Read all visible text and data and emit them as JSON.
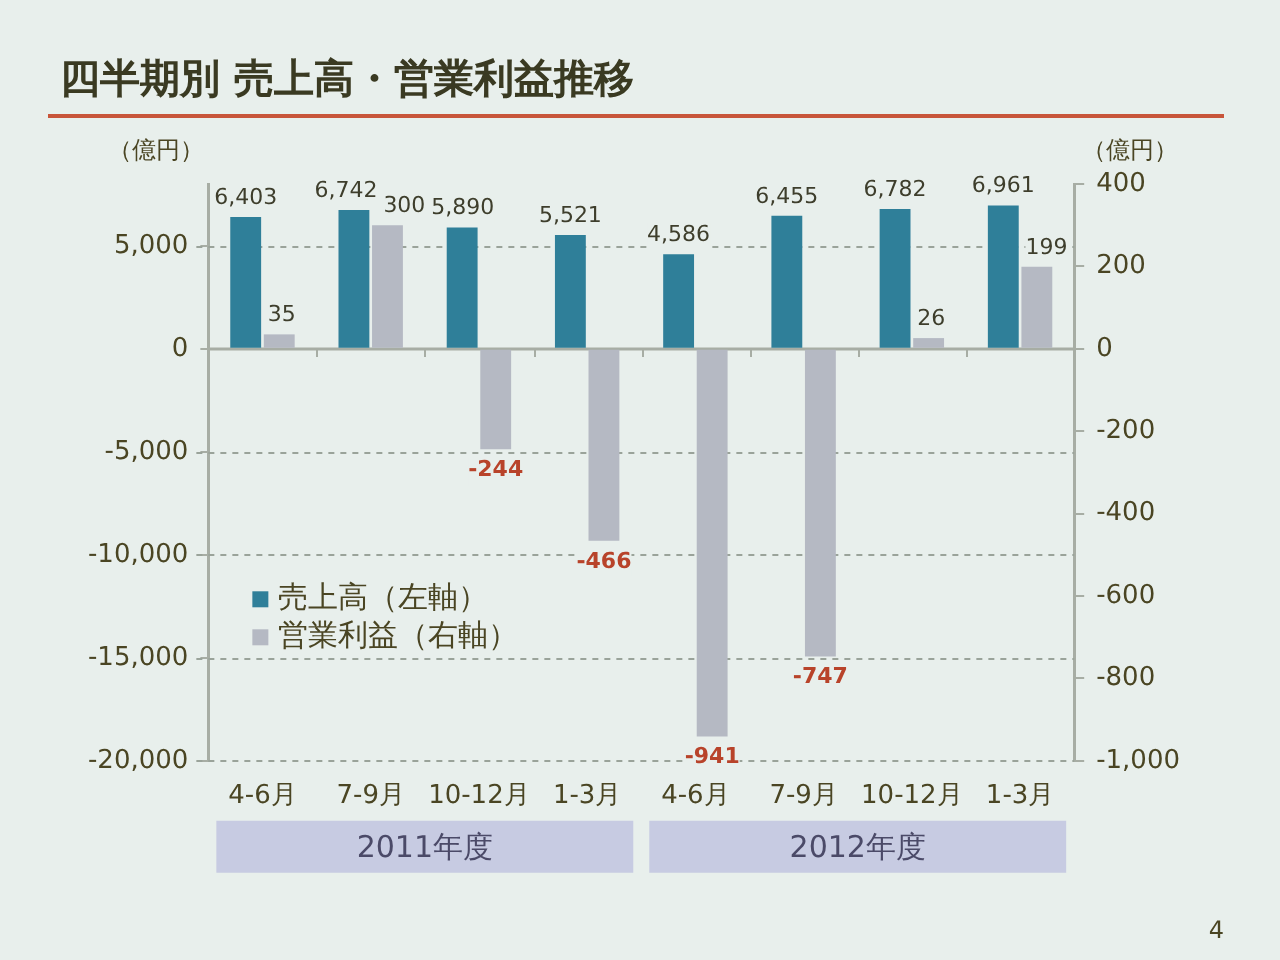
{
  "chart_data": {
    "type": "bar",
    "title": "四半期別 売上高・営業利益推移",
    "ylabel": "（億円）",
    "y2label": "（億円）",
    "categories": [
      "4-6月",
      "7-9月",
      "10-12月",
      "1-3月",
      "4-6月",
      "7-9月",
      "10-12月",
      "1-3月"
    ],
    "series": [
      {
        "name": "売上高（左軸）",
        "color": "#2f7f99",
        "values": [
          6403,
          6742,
          5890,
          5521,
          4586,
          6455,
          6782,
          6961
        ],
        "value_labels": [
          "6,403",
          "6,742",
          "5,890",
          "5,521",
          "4,586",
          "6,455",
          "6,782",
          "6,961"
        ]
      },
      {
        "name": "営業利益（右軸）",
        "color": "#b5b9c3",
        "axis": "y2",
        "values": [
          35,
          300,
          -244,
          -466,
          -941,
          -747,
          26,
          199
        ],
        "value_labels": [
          "35",
          "300",
          "-244",
          "-466",
          "-941",
          "-747",
          "26",
          "199"
        ]
      }
    ],
    "ylim": [
      -20000,
      8000
    ],
    "yticks": [
      {
        "value": -20000,
        "label": "-20,000"
      },
      {
        "value": -15000,
        "label": "-15,000"
      },
      {
        "value": -10000,
        "label": "-10,000"
      },
      {
        "value": -5000,
        "label": "-5,000"
      },
      0,
      {
        "value": 5000,
        "label": "5,000"
      }
    ],
    "y2lim": [
      -1000,
      400
    ],
    "y2ticks": [
      {
        "value": -1000,
        "label": "-1,000"
      },
      -800,
      -600,
      -400,
      -200,
      0,
      200,
      400
    ],
    "grid": "y",
    "legend": "left",
    "annotations": [
      "2011年度",
      "2012年度",
      "4"
    ]
  }
}
